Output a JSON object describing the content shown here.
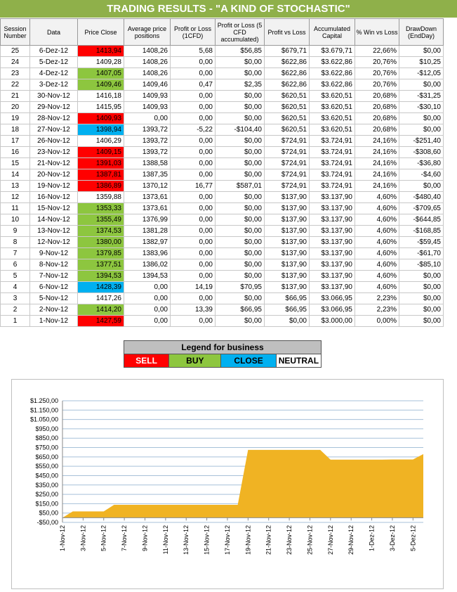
{
  "title": "TRADING RESULTS - \"A KIND OF STOCHASTIC\"",
  "table": {
    "headers": [
      "Session Number",
      "Data",
      "Price Close",
      "Average price positions",
      "Profit or Loss (1CFD)",
      "Profit or Loss (5 CFD accumulated)",
      "Profit vs Loss",
      "Accumulated Capital",
      "% Win vs Loss",
      "DrawDown (EndDay)"
    ],
    "rows": [
      {
        "session": "25",
        "date": "6-Dez-12",
        "price": "1413,94",
        "signal": "sell",
        "avg": "1408,26",
        "pl1": "5,68",
        "pl5": "$56,85",
        "pvl": "$679,71",
        "cap": "$3.679,71",
        "win": "22,66%",
        "dd": "$0,00"
      },
      {
        "session": "24",
        "date": "5-Dez-12",
        "price": "1409,28",
        "signal": "neutral",
        "avg": "1408,26",
        "pl1": "0,00",
        "pl5": "$0,00",
        "pvl": "$622,86",
        "cap": "$3.622,86",
        "win": "20,76%",
        "dd": "$10,25"
      },
      {
        "session": "23",
        "date": "4-Dez-12",
        "price": "1407,05",
        "signal": "buy",
        "avg": "1408,26",
        "pl1": "0,00",
        "pl5": "$0,00",
        "pvl": "$622,86",
        "cap": "$3.622,86",
        "win": "20,76%",
        "dd": "-$12,05"
      },
      {
        "session": "22",
        "date": "3-Dez-12",
        "price": "1409,46",
        "signal": "buy",
        "avg": "1409,46",
        "pl1": "0,47",
        "pl5": "$2,35",
        "pvl": "$622,86",
        "cap": "$3.622,86",
        "win": "20,76%",
        "dd": "$0,00"
      },
      {
        "session": "21",
        "date": "30-Nov-12",
        "price": "1416,18",
        "signal": "neutral",
        "avg": "1409,93",
        "pl1": "0,00",
        "pl5": "$0,00",
        "pvl": "$620,51",
        "cap": "$3.620,51",
        "win": "20,68%",
        "dd": "-$31,25"
      },
      {
        "session": "20",
        "date": "29-Nov-12",
        "price": "1415,95",
        "signal": "neutral",
        "avg": "1409,93",
        "pl1": "0,00",
        "pl5": "$0,00",
        "pvl": "$620,51",
        "cap": "$3.620,51",
        "win": "20,68%",
        "dd": "-$30,10"
      },
      {
        "session": "19",
        "date": "28-Nov-12",
        "price": "1409,93",
        "signal": "sell",
        "avg": "0,00",
        "pl1": "0,00",
        "pl5": "$0,00",
        "pvl": "$620,51",
        "cap": "$3.620,51",
        "win": "20,68%",
        "dd": "$0,00"
      },
      {
        "session": "18",
        "date": "27-Nov-12",
        "price": "1398,94",
        "signal": "close",
        "avg": "1393,72",
        "pl1": "-5,22",
        "pl5": "-$104,40",
        "pvl": "$620,51",
        "cap": "$3.620,51",
        "win": "20,68%",
        "dd": "$0,00"
      },
      {
        "session": "17",
        "date": "26-Nov-12",
        "price": "1406,29",
        "signal": "neutral",
        "avg": "1393,72",
        "pl1": "0,00",
        "pl5": "$0,00",
        "pvl": "$724,91",
        "cap": "$3.724,91",
        "win": "24,16%",
        "dd": "-$251,40"
      },
      {
        "session": "16",
        "date": "23-Nov-12",
        "price": "1409,15",
        "signal": "sell",
        "avg": "1393,72",
        "pl1": "0,00",
        "pl5": "$0,00",
        "pvl": "$724,91",
        "cap": "$3.724,91",
        "win": "24,16%",
        "dd": "-$308,60"
      },
      {
        "session": "15",
        "date": "21-Nov-12",
        "price": "1391,03",
        "signal": "sell",
        "avg": "1388,58",
        "pl1": "0,00",
        "pl5": "$0,00",
        "pvl": "$724,91",
        "cap": "$3.724,91",
        "win": "24,16%",
        "dd": "-$36,80"
      },
      {
        "session": "14",
        "date": "20-Nov-12",
        "price": "1387,81",
        "signal": "sell",
        "avg": "1387,35",
        "pl1": "0,00",
        "pl5": "$0,00",
        "pvl": "$724,91",
        "cap": "$3.724,91",
        "win": "24,16%",
        "dd": "-$4,60"
      },
      {
        "session": "13",
        "date": "19-Nov-12",
        "price": "1386,89",
        "signal": "sell",
        "avg": "1370,12",
        "pl1": "16,77",
        "pl5": "$587,01",
        "pvl": "$724,91",
        "cap": "$3.724,91",
        "win": "24,16%",
        "dd": "$0,00"
      },
      {
        "session": "12",
        "date": "16-Nov-12",
        "price": "1359,88",
        "signal": "neutral",
        "avg": "1373,61",
        "pl1": "0,00",
        "pl5": "$0,00",
        "pvl": "$137,90",
        "cap": "$3.137,90",
        "win": "4,60%",
        "dd": "-$480,40"
      },
      {
        "session": "11",
        "date": "15-Nov-12",
        "price": "1353,33",
        "signal": "buy",
        "avg": "1373,61",
        "pl1": "0,00",
        "pl5": "$0,00",
        "pvl": "$137,90",
        "cap": "$3.137,90",
        "win": "4,60%",
        "dd": "-$709,65"
      },
      {
        "session": "10",
        "date": "14-Nov-12",
        "price": "1355,49",
        "signal": "buy",
        "avg": "1376,99",
        "pl1": "0,00",
        "pl5": "$0,00",
        "pvl": "$137,90",
        "cap": "$3.137,90",
        "win": "4,60%",
        "dd": "-$644,85"
      },
      {
        "session": "9",
        "date": "13-Nov-12",
        "price": "1374,53",
        "signal": "buy",
        "avg": "1381,28",
        "pl1": "0,00",
        "pl5": "$0,00",
        "pvl": "$137,90",
        "cap": "$3.137,90",
        "win": "4,60%",
        "dd": "-$168,85"
      },
      {
        "session": "8",
        "date": "12-Nov-12",
        "price": "1380,00",
        "signal": "buy",
        "avg": "1382,97",
        "pl1": "0,00",
        "pl5": "$0,00",
        "pvl": "$137,90",
        "cap": "$3.137,90",
        "win": "4,60%",
        "dd": "-$59,45"
      },
      {
        "session": "7",
        "date": "9-Nov-12",
        "price": "1379,85",
        "signal": "buy",
        "avg": "1383,96",
        "pl1": "0,00",
        "pl5": "$0,00",
        "pvl": "$137,90",
        "cap": "$3.137,90",
        "win": "4,60%",
        "dd": "-$61,70"
      },
      {
        "session": "6",
        "date": "8-Nov-12",
        "price": "1377,51",
        "signal": "buy",
        "avg": "1386,02",
        "pl1": "0,00",
        "pl5": "$0,00",
        "pvl": "$137,90",
        "cap": "$3.137,90",
        "win": "4,60%",
        "dd": "-$85,10"
      },
      {
        "session": "5",
        "date": "7-Nov-12",
        "price": "1394,53",
        "signal": "buy",
        "avg": "1394,53",
        "pl1": "0,00",
        "pl5": "$0,00",
        "pvl": "$137,90",
        "cap": "$3.137,90",
        "win": "4,60%",
        "dd": "$0,00"
      },
      {
        "session": "4",
        "date": "6-Nov-12",
        "price": "1428,39",
        "signal": "close",
        "avg": "0,00",
        "pl1": "14,19",
        "pl5": "$70,95",
        "pvl": "$137,90",
        "cap": "$3.137,90",
        "win": "4,60%",
        "dd": "$0,00"
      },
      {
        "session": "3",
        "date": "5-Nov-12",
        "price": "1417,26",
        "signal": "neutral",
        "avg": "0,00",
        "pl1": "0,00",
        "pl5": "$0,00",
        "pvl": "$66,95",
        "cap": "$3.066,95",
        "win": "2,23%",
        "dd": "$0,00"
      },
      {
        "session": "2",
        "date": "2-Nov-12",
        "price": "1414,20",
        "signal": "buy",
        "avg": "0,00",
        "pl1": "13,39",
        "pl5": "$66,95",
        "pvl": "$66,95",
        "cap": "$3.066,95",
        "win": "2,23%",
        "dd": "$0,00"
      },
      {
        "session": "1",
        "date": "1-Nov-12",
        "price": "1427,59",
        "signal": "sell",
        "avg": "0,00",
        "pl1": "0,00",
        "pl5": "$0,00",
        "pvl": "$0,00",
        "cap": "$3.000,00",
        "win": "0,00%",
        "dd": "$0,00"
      }
    ]
  },
  "legend": {
    "title": "Legend for business",
    "items": [
      {
        "label": "SELL",
        "color": "#ff0000"
      },
      {
        "label": "BUY",
        "color": "#8dc63f"
      },
      {
        "label": "CLOSE",
        "color": "#00b0f0"
      },
      {
        "label": "NEUTRAL",
        "color": "#ffffff"
      }
    ]
  },
  "colors": {
    "header_bg": "#8fb04a",
    "area_fill": "#f0b323",
    "sell": "#ff0000",
    "buy": "#8dc63f",
    "close": "#00b0f0"
  },
  "chart_data": {
    "type": "area",
    "title": "",
    "xlabel": "",
    "ylabel": "",
    "x": [
      "1-Nov-12",
      "2-Nov-12",
      "3-Nov-12",
      "4-Nov-12",
      "5-Nov-12",
      "6-Nov-12",
      "7-Nov-12",
      "8-Nov-12",
      "9-Nov-12",
      "10-Nov-12",
      "11-Nov-12",
      "12-Nov-12",
      "13-Nov-12",
      "14-Nov-12",
      "15-Nov-12",
      "16-Nov-12",
      "17-Nov-12",
      "18-Nov-12",
      "19-Nov-12",
      "20-Nov-12",
      "21-Nov-12",
      "22-Nov-12",
      "23-Nov-12",
      "24-Nov-12",
      "25-Nov-12",
      "26-Nov-12",
      "27-Nov-12",
      "28-Nov-12",
      "29-Nov-12",
      "30-Nov-12",
      "1-Dez-12",
      "2-Dez-12",
      "3-Dez-12",
      "4-Dez-12",
      "5-Dez-12",
      "6-Dez-12"
    ],
    "tick_labels": [
      "1-Nov-12",
      "3-Nov-12",
      "5-Nov-12",
      "7-Nov-12",
      "9-Nov-12",
      "11-Nov-12",
      "13-Nov-12",
      "15-Nov-12",
      "17-Nov-12",
      "19-Nov-12",
      "21-Nov-12",
      "23-Nov-12",
      "25-Nov-12",
      "27-Nov-12",
      "29-Nov-12",
      "1-Dez-12",
      "3-Dez-12",
      "5-Dez-12"
    ],
    "values": [
      0,
      66.95,
      66.95,
      66.95,
      66.95,
      137.9,
      137.9,
      137.9,
      137.9,
      137.9,
      137.9,
      137.9,
      137.9,
      137.9,
      137.9,
      137.9,
      137.9,
      137.9,
      724.91,
      724.91,
      724.91,
      724.91,
      724.91,
      724.91,
      724.91,
      724.91,
      620.51,
      620.51,
      620.51,
      620.51,
      620.51,
      620.51,
      622.86,
      622.86,
      622.86,
      679.71
    ],
    "y_ticks": [
      "-$50,00",
      "$50,00",
      "$150,00",
      "$250,00",
      "$350,00",
      "$450,00",
      "$550,00",
      "$650,00",
      "$750,00",
      "$850,00",
      "$950,00",
      "$1.050,00",
      "$1.150,00",
      "$1.250,00"
    ],
    "ylim": [
      -50,
      1250
    ],
    "grid": true
  }
}
